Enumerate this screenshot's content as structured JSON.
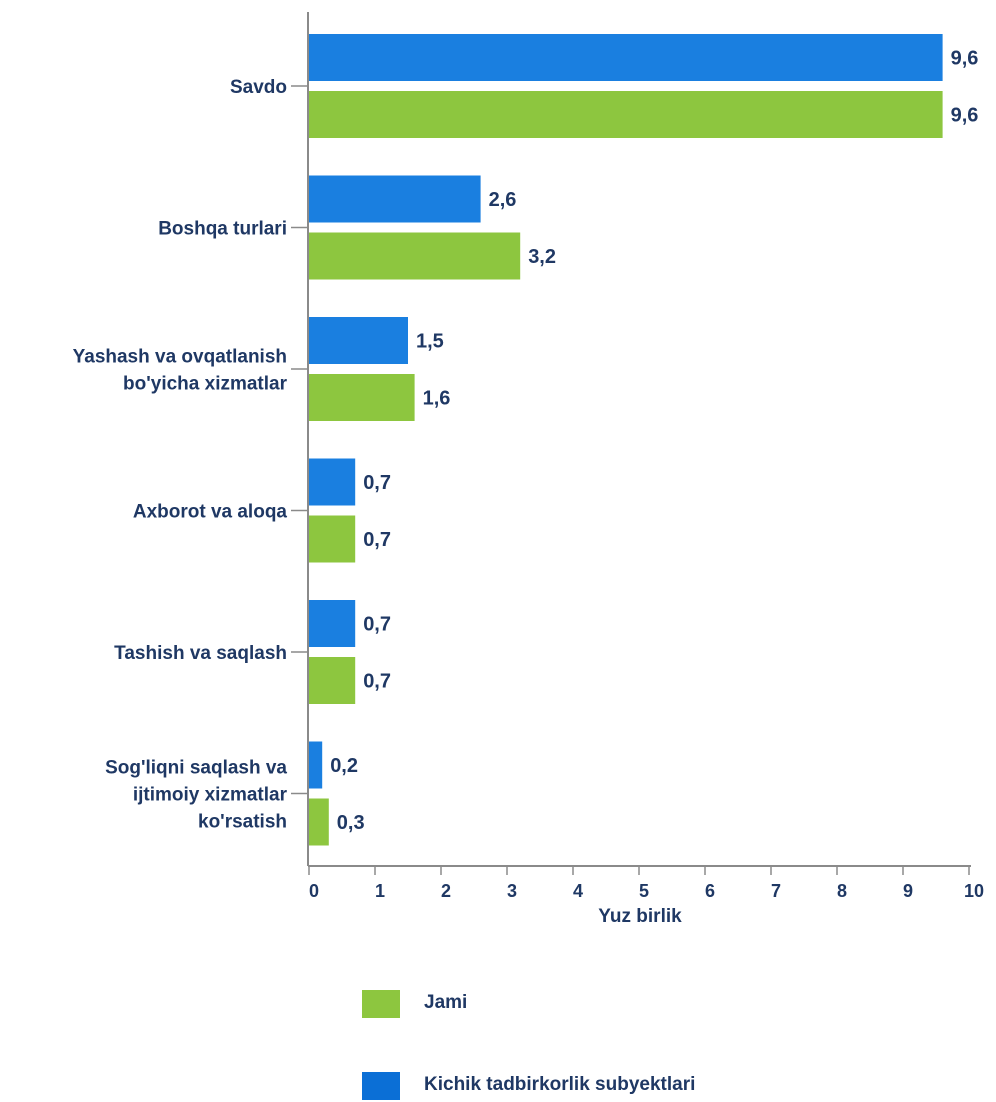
{
  "chart_data": {
    "type": "bar",
    "orientation": "horizontal",
    "categories": [
      [
        "Savdo"
      ],
      [
        "Boshqa turlari"
      ],
      [
        "Yashash va ovqatlanish",
        "bo'yicha xizmatlar"
      ],
      [
        "Axborot va aloqa"
      ],
      [
        "Tashish va saqlash"
      ],
      [
        "Sog'liqni saqlash va",
        "ijtimoiy xizmatlar",
        "ko'rsatish"
      ]
    ],
    "series": [
      {
        "name": "Kichik tadbirkorlik subyektlari",
        "values": [
          9.6,
          2.6,
          1.5,
          0.7,
          0.7,
          0.2
        ],
        "labels": [
          "9,6",
          "2,6",
          "1,5",
          "0,7",
          "0,7",
          "0,2"
        ],
        "color": "#1a7fe0"
      },
      {
        "name": "Jami",
        "values": [
          9.6,
          3.2,
          1.6,
          0.7,
          0.7,
          0.3
        ],
        "labels": [
          "9,6",
          "3,2",
          "1,6",
          "0,7",
          "0,7",
          "0,3"
        ],
        "color": "#8dc63f"
      }
    ],
    "xlabel": "Yuz birlik",
    "ylabel": "",
    "xlim": [
      0,
      10
    ],
    "xticks": [
      "0",
      "1",
      "2",
      "3",
      "4",
      "5",
      "6",
      "7",
      "8",
      "9",
      "10"
    ],
    "grid": false,
    "legend_position": "bottom",
    "text_color": "#1f3864"
  },
  "legend": {
    "items": [
      {
        "label": "Jami",
        "color": "#8dc63f"
      },
      {
        "label": "Kichik tadbirkorlik subyektlari",
        "color": "#0b6fd6"
      }
    ]
  }
}
